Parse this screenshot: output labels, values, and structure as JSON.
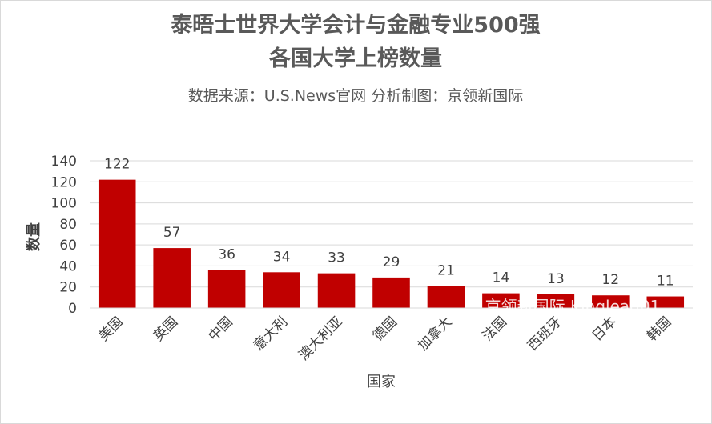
{
  "chart_data": {
    "type": "bar",
    "title": [
      "泰晤士世界大学会计与金融专业500强",
      "各国大学上榜数量"
    ],
    "subtitle": "数据来源：U.S.News官网 分析制图：京领新国际",
    "watermark": "京领新国际 Kinglead01",
    "x_label": "国家",
    "y_label": "数量",
    "categories": [
      "美国",
      "英国",
      "中国",
      "意大利",
      "澳大利亚",
      "德国",
      "加拿大",
      "法国",
      "西班牙",
      "日本",
      "韩国"
    ],
    "values": [
      122,
      57,
      36,
      34,
      33,
      29,
      21,
      14,
      13,
      12,
      11
    ],
    "color": "#c00000",
    "ylim": [
      0,
      140
    ],
    "yticks": [
      0,
      20,
      40,
      60,
      80,
      100,
      120,
      140
    ],
    "grid": true
  }
}
